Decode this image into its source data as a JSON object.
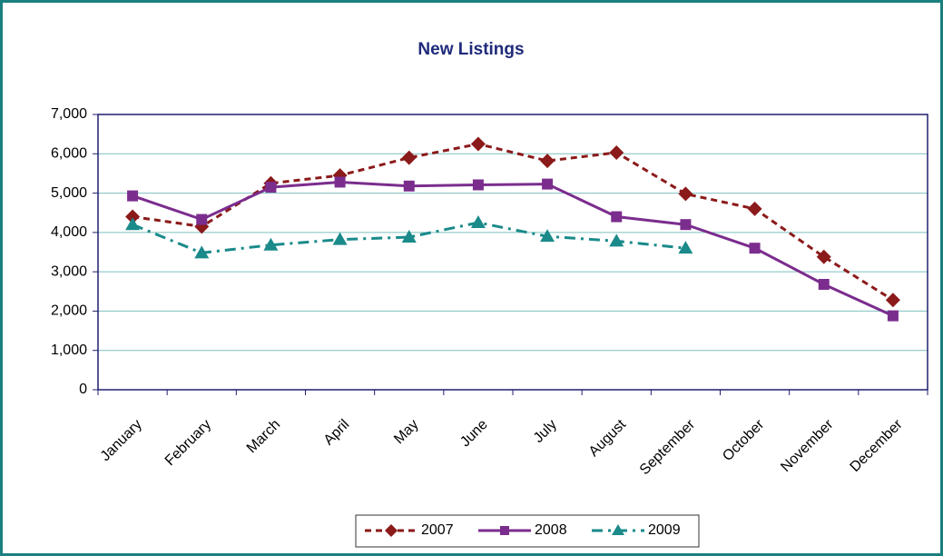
{
  "chart_data": {
    "type": "line",
    "title": "New Listings",
    "categories": [
      "January",
      "February",
      "March",
      "April",
      "May",
      "June",
      "July",
      "August",
      "September",
      "October",
      "November",
      "December"
    ],
    "series": [
      {
        "name": "2007",
        "color": "#8b1a1a",
        "dash": "dashed",
        "marker": "diamond",
        "values": [
          4400,
          4150,
          5250,
          5450,
          5900,
          6250,
          5820,
          6030,
          4980,
          4600,
          3380,
          2280
        ]
      },
      {
        "name": "2008",
        "color": "#7b2d8e",
        "dash": "solid",
        "marker": "square",
        "values": [
          4930,
          4330,
          5150,
          5280,
          5180,
          5210,
          5230,
          4400,
          4200,
          3600,
          2680,
          1880
        ]
      },
      {
        "name": "2009",
        "color": "#1a8a8a",
        "dash": "dashdot",
        "marker": "triangle",
        "values": [
          4200,
          3480,
          3680,
          3820,
          3880,
          4250,
          3900,
          3780,
          3600,
          null,
          null,
          null
        ]
      }
    ],
    "ylim": [
      0,
      7000
    ],
    "yticks": [
      0,
      {
        "value": 1000,
        "label": "1,000"
      },
      {
        "value": 2000,
        "label": "2,000"
      },
      {
        "value": 3000,
        "label": "3,000"
      },
      {
        "value": 4000,
        "label": "4,000"
      },
      {
        "value": 5000,
        "label": "5,000"
      },
      {
        "value": 6000,
        "label": "6,000"
      },
      {
        "value": 7000,
        "label": "7,000"
      }
    ],
    "grid": true,
    "legend": "bottom"
  }
}
